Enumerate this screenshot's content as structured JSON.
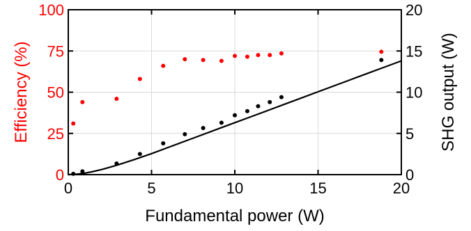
{
  "chart_data": {
    "type": "scatter",
    "title": "",
    "xlabel": "Fundamental power (W)",
    "ylabel_left": "Efficiency (%)",
    "ylabel_right": "SHG output (W)",
    "xlim": [
      0,
      20
    ],
    "ylim_left": [
      0,
      100
    ],
    "ylim_right": [
      0,
      20
    ],
    "x_ticks": [
      "0",
      "5",
      "10",
      "15",
      "20"
    ],
    "y_left_ticks": [
      "0",
      "25",
      "50",
      "75",
      "100"
    ],
    "y_right_ticks": [
      "0",
      "5",
      "10",
      "15",
      "20"
    ],
    "grid": true,
    "colors": {
      "efficiency": "#ff0000",
      "shg": "#000000",
      "fit": "#000000",
      "grid": "#d9d9d9"
    },
    "series": [
      {
        "axis": "left",
        "marker": "dot",
        "x": [
          0.3,
          0.85,
          2.9,
          4.3,
          5.7,
          7.0,
          8.1,
          9.2,
          10.0,
          10.75,
          11.4,
          12.1,
          12.8,
          18.8
        ],
        "y": [
          31,
          44,
          46,
          58,
          66,
          70,
          69.5,
          69,
          72,
          71.5,
          72.5,
          72.5,
          73.5,
          74.5
        ]
      },
      {
        "axis": "right",
        "marker": "dot",
        "x": [
          0.3,
          0.85,
          2.9,
          4.3,
          5.7,
          7.0,
          8.1,
          9.2,
          10.0,
          10.75,
          11.4,
          12.1,
          12.8,
          18.8
        ],
        "y": [
          0.1,
          0.4,
          1.35,
          2.5,
          3.8,
          4.9,
          5.65,
          6.3,
          7.2,
          7.7,
          8.3,
          8.8,
          9.4,
          13.9
        ]
      },
      {
        "axis": "right",
        "marker": "line",
        "x": [
          0,
          0.5,
          1,
          1.5,
          2,
          2.5,
          3,
          4,
          5,
          6,
          7,
          8,
          9,
          10,
          11,
          12,
          13,
          14,
          15,
          16,
          17,
          18,
          19,
          20
        ],
        "y": [
          0,
          0.05,
          0.18,
          0.38,
          0.62,
          0.9,
          1.2,
          1.85,
          2.55,
          3.3,
          4.05,
          4.8,
          5.55,
          6.3,
          7.05,
          7.8,
          8.55,
          9.3,
          10.05,
          10.8,
          11.55,
          12.3,
          13.05,
          13.8
        ]
      }
    ]
  }
}
